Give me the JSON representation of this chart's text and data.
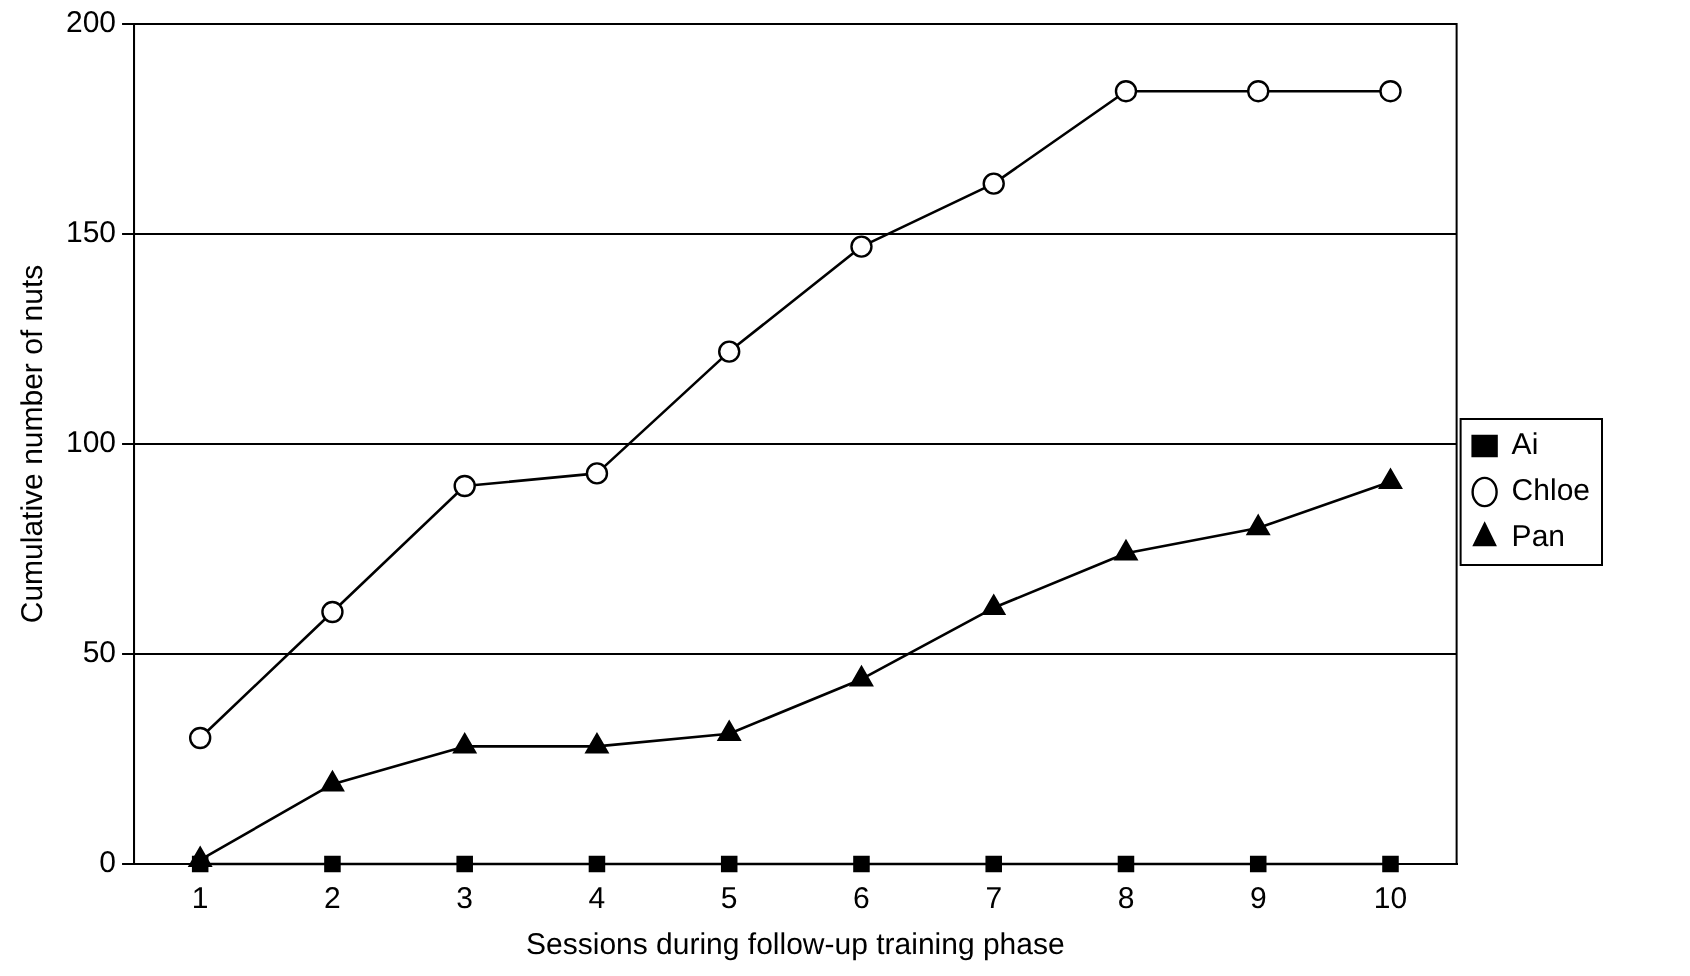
{
  "chart_data": {
    "type": "line",
    "xlabel": "Sessions during follow-up training phase",
    "ylabel": "Cumulative number of nuts",
    "categories": [
      "1",
      "2",
      "3",
      "4",
      "5",
      "6",
      "7",
      "8",
      "9",
      "10"
    ],
    "series": [
      {
        "name": "Ai",
        "color": "#000000",
        "marker": "square",
        "values": [
          0,
          0,
          0,
          0,
          0,
          0,
          0,
          0,
          0,
          0
        ]
      },
      {
        "name": "Chloe",
        "color": "#000000",
        "marker": "circle",
        "values": [
          30,
          60,
          90,
          93,
          122,
          147,
          162,
          184,
          184,
          184
        ]
      },
      {
        "name": "Pan",
        "color": "#000000",
        "marker": "triangle",
        "values": [
          1,
          19,
          28,
          28,
          31,
          44,
          61,
          74,
          80,
          91
        ]
      }
    ],
    "ylim": [
      0,
      200
    ],
    "yticks": [
      0,
      50,
      100,
      150,
      200
    ],
    "grid": "y",
    "legend": "right",
    "line_style": "solid"
  }
}
